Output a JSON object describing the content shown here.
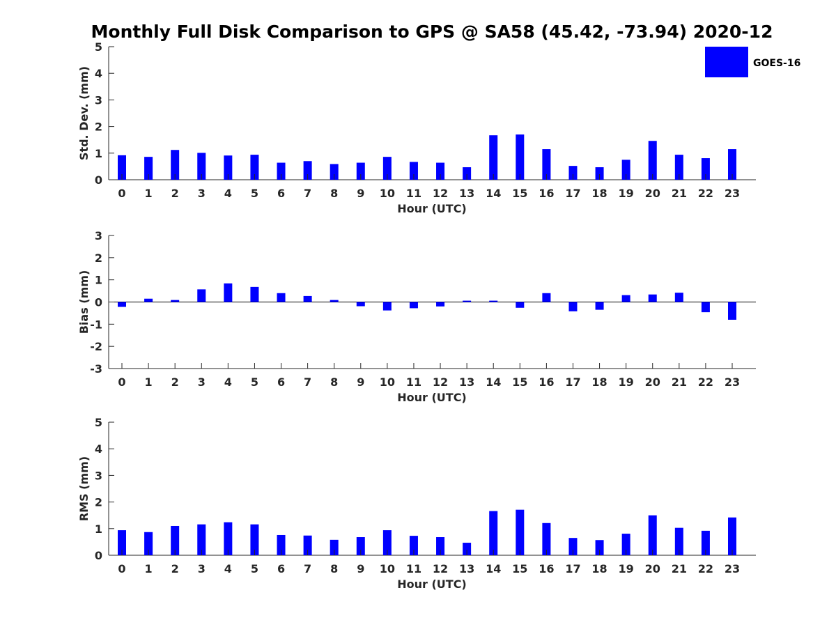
{
  "figure": {
    "title": "Monthly Full Disk Comparison to GPS @ SA58 (45.42, -73.94) 2020-12"
  },
  "legend": {
    "label": "GOES-16",
    "placement": "top-right"
  },
  "colors": {
    "bar": "#0000ff",
    "axis": "#262626"
  },
  "chart_data": [
    {
      "type": "bar",
      "categories": [
        "0",
        "1",
        "2",
        "3",
        "4",
        "5",
        "6",
        "7",
        "8",
        "9",
        "10",
        "11",
        "12",
        "13",
        "14",
        "15",
        "16",
        "17",
        "18",
        "19",
        "20",
        "21",
        "22",
        "23"
      ],
      "series": [
        {
          "name": "GOES-16",
          "values": [
            0.92,
            0.86,
            1.12,
            1.01,
            0.91,
            0.94,
            0.64,
            0.7,
            0.59,
            0.64,
            0.86,
            0.67,
            0.64,
            0.47,
            1.67,
            1.7,
            1.15,
            0.52,
            0.47,
            0.75,
            1.46,
            0.94,
            0.81,
            1.15
          ]
        }
      ],
      "xlabel": "Hour (UTC)",
      "ylabel": "Std. Dev. (mm)",
      "ylim": [
        0,
        5
      ],
      "yticks": [
        0,
        1,
        2,
        3,
        4,
        5
      ],
      "grid": false
    },
    {
      "type": "bar",
      "categories": [
        "0",
        "1",
        "2",
        "3",
        "4",
        "5",
        "6",
        "7",
        "8",
        "9",
        "10",
        "11",
        "12",
        "13",
        "14",
        "15",
        "16",
        "17",
        "18",
        "19",
        "20",
        "21",
        "22",
        "23"
      ],
      "series": [
        {
          "name": "GOES-16",
          "values": [
            -0.22,
            0.15,
            0.09,
            0.57,
            0.84,
            0.68,
            0.4,
            0.27,
            0.09,
            -0.19,
            -0.38,
            -0.28,
            -0.2,
            0.06,
            0.06,
            -0.26,
            0.4,
            -0.42,
            -0.35,
            0.31,
            0.34,
            0.42,
            -0.46,
            -0.8
          ]
        }
      ],
      "xlabel": "Hour (UTC)",
      "ylabel": "Bias (mm)",
      "ylim": [
        -3,
        3
      ],
      "yticks": [
        -3,
        -2,
        -1,
        0,
        1,
        2,
        3
      ],
      "grid": false
    },
    {
      "type": "bar",
      "categories": [
        "0",
        "1",
        "2",
        "3",
        "4",
        "5",
        "6",
        "7",
        "8",
        "9",
        "10",
        "11",
        "12",
        "13",
        "14",
        "15",
        "16",
        "17",
        "18",
        "19",
        "20",
        "21",
        "22",
        "23"
      ],
      "series": [
        {
          "name": "GOES-16",
          "values": [
            0.94,
            0.87,
            1.1,
            1.16,
            1.24,
            1.16,
            0.76,
            0.74,
            0.58,
            0.68,
            0.94,
            0.73,
            0.68,
            0.47,
            1.66,
            1.71,
            1.21,
            0.65,
            0.57,
            0.81,
            1.5,
            1.03,
            0.92,
            1.42
          ]
        }
      ],
      "xlabel": "Hour (UTC)",
      "ylabel": "RMS (mm)",
      "ylim": [
        0,
        5
      ],
      "yticks": [
        0,
        1,
        2,
        3,
        4,
        5
      ],
      "grid": false
    }
  ]
}
